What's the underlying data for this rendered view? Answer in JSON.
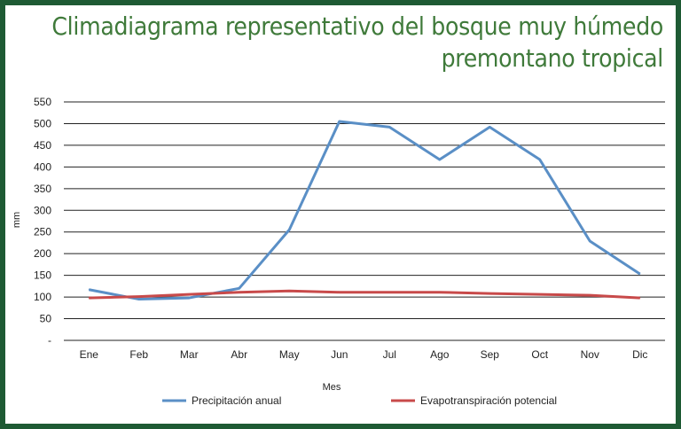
{
  "title_line1": "Climadiagrama representativo del bosque muy húmedo",
  "title_line2": "premontano tropical",
  "colors": {
    "frame": "#1e5a34",
    "title": "#3f7a3a",
    "precip": "#5a8fc6",
    "evap": "#c84a4a",
    "grid": "#222222"
  },
  "chart_data": {
    "type": "line",
    "categories": [
      "Ene",
      "Feb",
      "Mar",
      "Abr",
      "May",
      "Jun",
      "Jul",
      "Ago",
      "Sep",
      "Oct",
      "Nov",
      "Dic"
    ],
    "series": [
      {
        "name": "Precipitación anual",
        "values": [
          117,
          95,
          98,
          120,
          255,
          505,
          492,
          417,
          492,
          417,
          229,
          153
        ]
      },
      {
        "name": "Evapotranspiración potencial",
        "values": [
          98,
          101,
          106,
          111,
          114,
          111,
          111,
          111,
          108,
          106,
          104,
          98
        ]
      }
    ],
    "yticks": [
      "-",
      "50",
      "100",
      "150",
      "200",
      "250",
      "300",
      "350",
      "400",
      "450",
      "500",
      "550"
    ],
    "ylim": [
      0,
      550
    ],
    "xlabel": "Mes",
    "ylabel": "mm",
    "grid": true,
    "legend_position": "bottom"
  }
}
